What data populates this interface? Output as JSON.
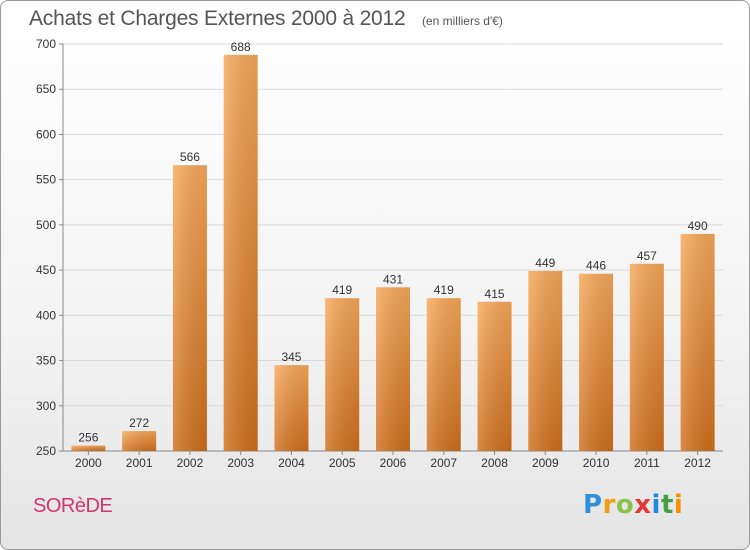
{
  "header": {
    "title": "Achats et Charges Externes 2000 à 2012",
    "subtitle": "(en milliers d'€)"
  },
  "footer": {
    "commune": "SORèDE",
    "logo_text": "Proxiti",
    "logo_letters": [
      {
        "char": "P",
        "color": "#2f8fd8"
      },
      {
        "char": "r",
        "color": "#f39c12"
      },
      {
        "char": "o",
        "color": "#8bc34a"
      },
      {
        "char": "x",
        "color": "#e53935"
      },
      {
        "char": "i",
        "color": "#1e88e5"
      },
      {
        "char": "t",
        "color": "#43a047"
      },
      {
        "char": "i",
        "color": "#fb8c00"
      }
    ]
  },
  "colors": {
    "bar_light": "#f7a85a",
    "bar_dark": "#cf6f1c",
    "axis": "#888888",
    "grid": "#d9d9d9",
    "accent_text": "#d6336c"
  },
  "chart_data": {
    "type": "bar",
    "title": "Achats et Charges Externes 2000 à 2012",
    "subtitle": "(en milliers d'€)",
    "categories": [
      "2000",
      "2001",
      "2002",
      "2003",
      "2004",
      "2005",
      "2006",
      "2007",
      "2008",
      "2009",
      "2010",
      "2011",
      "2012"
    ],
    "values": [
      256,
      272,
      566,
      688,
      345,
      419,
      431,
      419,
      415,
      449,
      446,
      457,
      490
    ],
    "ylim": [
      250,
      700
    ],
    "yticks": [
      250,
      300,
      350,
      400,
      450,
      500,
      550,
      600,
      650,
      700
    ],
    "grid": true,
    "legend": "none",
    "data_labels": true
  }
}
